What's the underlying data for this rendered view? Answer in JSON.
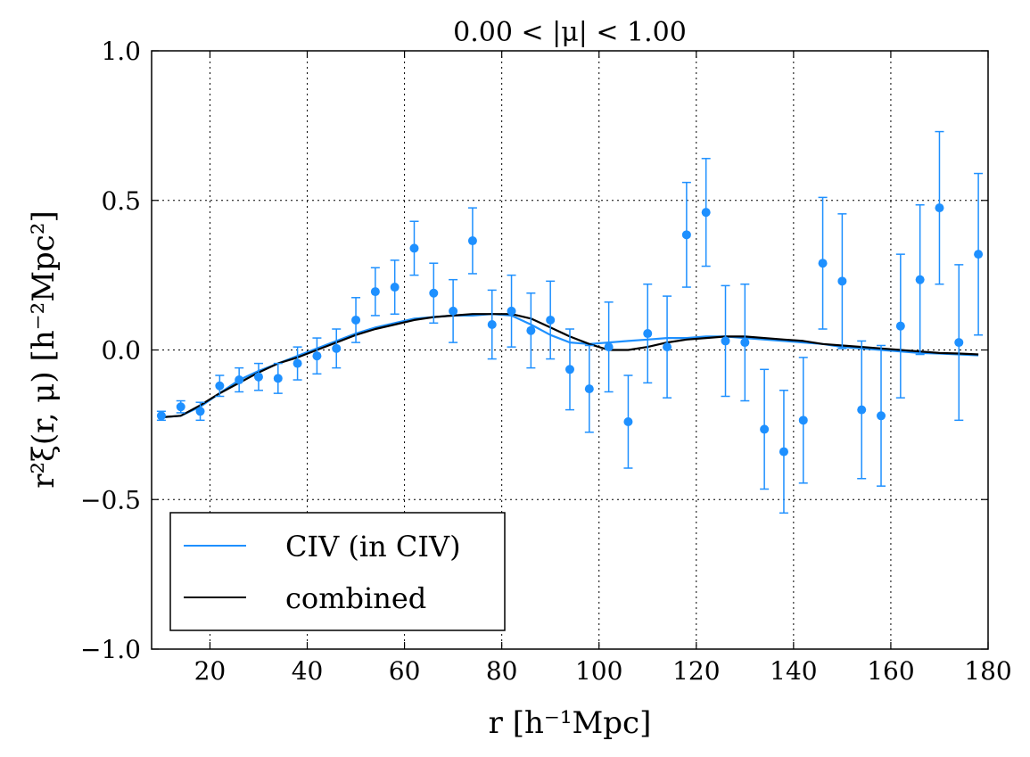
{
  "chart_data": {
    "type": "scatter",
    "title": "0.00 < |μ| < 1.00",
    "xlabel": "r [h⁻¹Mpc]",
    "ylabel": "r²ξ(r, μ) [h⁻²Mpc²]",
    "xlim": [
      8,
      180
    ],
    "ylim": [
      -1.0,
      1.0
    ],
    "xticks": [
      20,
      40,
      60,
      80,
      100,
      120,
      140,
      160,
      180
    ],
    "xtick_labels": [
      "20",
      "40",
      "60",
      "80",
      "100",
      "120",
      "140",
      "160",
      "180"
    ],
    "yticks": [
      -1.0,
      -0.5,
      0.0,
      0.5,
      1.0
    ],
    "ytick_labels": [
      "−1.0",
      "−0.5",
      "0.0",
      "0.5",
      "1.0"
    ],
    "grid": true,
    "legend_position": "lower-left",
    "colors": {
      "data": "#1e90ff",
      "model": "#1e90ff",
      "combined": "#000000"
    },
    "points": {
      "x": [
        10,
        14,
        18,
        22,
        26,
        30,
        34,
        38,
        42,
        46,
        50,
        54,
        58,
        62,
        66,
        70,
        74,
        78,
        82,
        86,
        90,
        94,
        98,
        102,
        106,
        110,
        114,
        118,
        122,
        126,
        130,
        134,
        138,
        142,
        146,
        150,
        154,
        158,
        162,
        166,
        170,
        174,
        178
      ],
      "y": [
        -0.22,
        -0.19,
        -0.205,
        -0.12,
        -0.1,
        -0.09,
        -0.095,
        -0.045,
        -0.02,
        0.005,
        0.1,
        0.195,
        0.21,
        0.34,
        0.19,
        0.13,
        0.365,
        0.085,
        0.13,
        0.065,
        0.1,
        -0.065,
        -0.13,
        0.01,
        -0.24,
        0.055,
        0.01,
        0.385,
        0.46,
        0.03,
        0.025,
        -0.265,
        -0.34,
        -0.235,
        0.29,
        0.23,
        -0.2,
        -0.22,
        0.08,
        0.235,
        0.475,
        0.025,
        0.32
      ],
      "err": [
        0.015,
        0.02,
        0.03,
        0.035,
        0.04,
        0.045,
        0.05,
        0.055,
        0.06,
        0.065,
        0.075,
        0.08,
        0.09,
        0.09,
        0.1,
        0.105,
        0.11,
        0.115,
        0.12,
        0.125,
        0.13,
        0.135,
        0.145,
        0.15,
        0.155,
        0.165,
        0.17,
        0.175,
        0.18,
        0.185,
        0.195,
        0.2,
        0.205,
        0.21,
        0.22,
        0.225,
        0.23,
        0.235,
        0.24,
        0.25,
        0.255,
        0.26,
        0.27
      ]
    },
    "series": [
      {
        "name": "CIV (in CIV)",
        "x": [
          10,
          14,
          18,
          22,
          26,
          30,
          34,
          38,
          42,
          46,
          50,
          54,
          58,
          62,
          66,
          70,
          74,
          78,
          82,
          86,
          90,
          94,
          98,
          102,
          106,
          110,
          114,
          118,
          122,
          126,
          130,
          134,
          138,
          142,
          146,
          150,
          154,
          158,
          162,
          166,
          170,
          174,
          178
        ],
        "y": [
          -0.225,
          -0.22,
          -0.19,
          -0.145,
          -0.1,
          -0.07,
          -0.045,
          -0.02,
          0.005,
          0.03,
          0.055,
          0.075,
          0.09,
          0.105,
          0.11,
          0.115,
          0.115,
          0.12,
          0.115,
          0.085,
          0.05,
          0.025,
          0.02,
          0.025,
          0.03,
          0.035,
          0.04,
          0.04,
          0.045,
          0.045,
          0.04,
          0.035,
          0.03,
          0.025,
          0.02,
          0.01,
          0.005,
          0.0,
          -0.005,
          -0.01,
          -0.012,
          -0.015,
          -0.018
        ]
      },
      {
        "name": "combined",
        "x": [
          10,
          14,
          18,
          22,
          26,
          30,
          34,
          38,
          42,
          46,
          50,
          54,
          58,
          62,
          66,
          70,
          74,
          78,
          82,
          86,
          90,
          94,
          98,
          102,
          106,
          110,
          114,
          118,
          122,
          126,
          130,
          134,
          138,
          142,
          146,
          150,
          154,
          158,
          162,
          166,
          170,
          174,
          178
        ],
        "y": [
          -0.225,
          -0.22,
          -0.185,
          -0.145,
          -0.11,
          -0.075,
          -0.045,
          -0.025,
          0.0,
          0.025,
          0.05,
          0.07,
          0.085,
          0.1,
          0.11,
          0.115,
          0.12,
          0.12,
          0.12,
          0.105,
          0.075,
          0.045,
          0.02,
          0.0,
          0.0,
          0.01,
          0.025,
          0.035,
          0.04,
          0.045,
          0.045,
          0.04,
          0.035,
          0.03,
          0.02,
          0.015,
          0.01,
          0.005,
          0.0,
          -0.005,
          -0.01,
          -0.012,
          -0.015
        ]
      }
    ],
    "legend": [
      "CIV (in CIV)",
      "combined"
    ]
  }
}
